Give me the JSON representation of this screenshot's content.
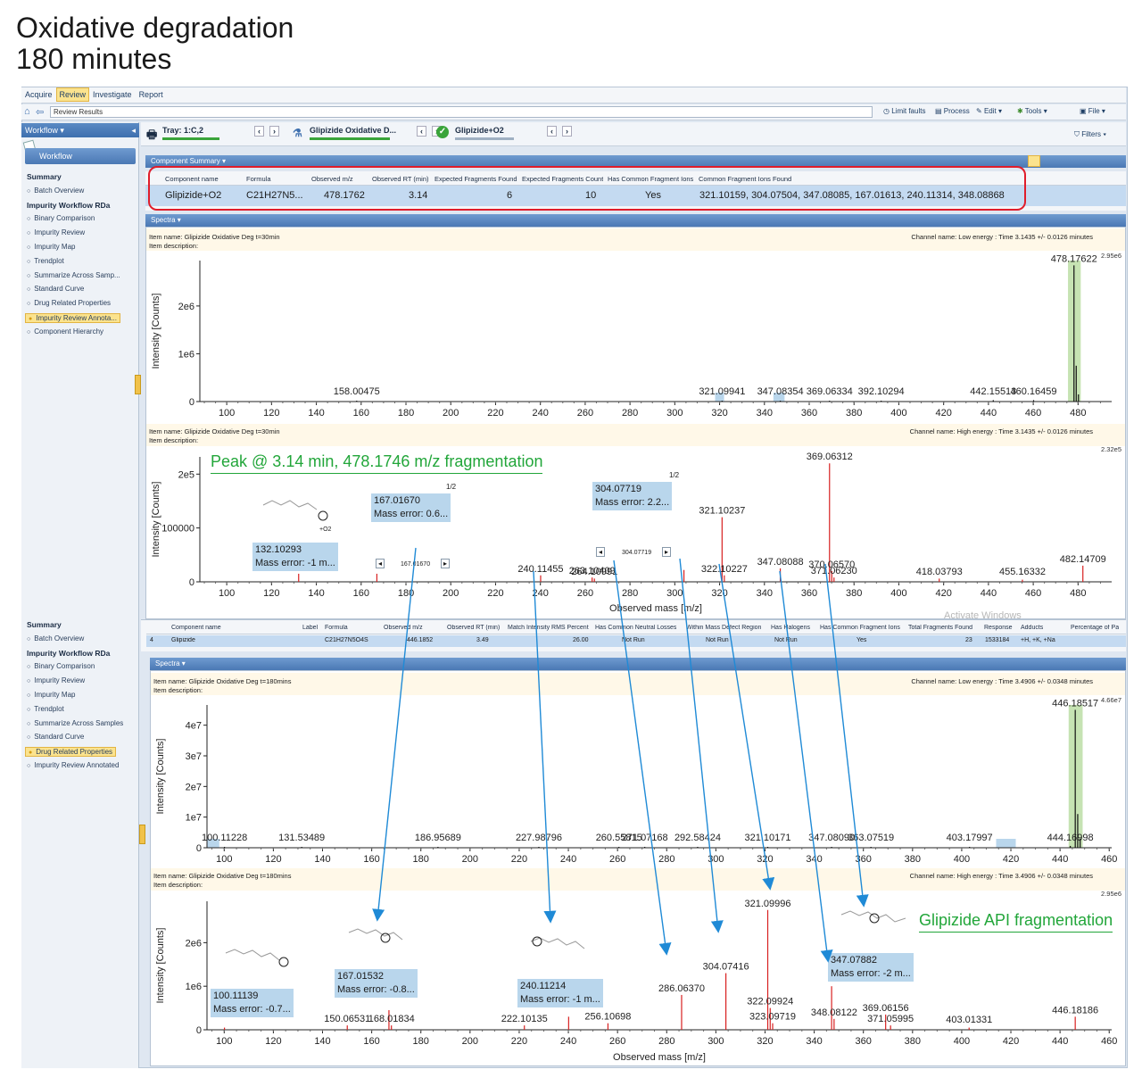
{
  "page": {
    "title_line1": "Oxidative degradation",
    "title_line2": "180 minutes"
  },
  "menu": {
    "tabs": [
      {
        "label": "Acquire",
        "active": false
      },
      {
        "label": "Review",
        "active": true
      },
      {
        "label": "Investigate",
        "active": false
      },
      {
        "label": "Report",
        "active": false
      }
    ]
  },
  "toolbar": {
    "address": "Review Results",
    "limit_faults": "Limit faults",
    "process": "Process",
    "edit": "Edit",
    "tools": "Tools",
    "file": "File",
    "filters": "Filters"
  },
  "sidebar": {
    "header": "Workflow",
    "tab": "Workflow",
    "items_top": [
      {
        "label": "Summary",
        "kind": "head"
      },
      {
        "label": "Batch Overview",
        "kind": "sub"
      },
      {
        "label": "Impurity Workflow RDa",
        "kind": "head"
      },
      {
        "label": "Binary Comparison",
        "kind": "sub"
      },
      {
        "label": "Impurity Review",
        "kind": "sub"
      },
      {
        "label": "Impurity Map",
        "kind": "sub"
      },
      {
        "label": "Trendplot",
        "kind": "sub"
      },
      {
        "label": "Summarize Across Samp...",
        "kind": "sub"
      },
      {
        "label": "Standard Curve",
        "kind": "sub"
      },
      {
        "label": "Drug Related Properties",
        "kind": "sub"
      },
      {
        "label": "Impurity Review Annota...",
        "kind": "sel"
      },
      {
        "label": "Component Hierarchy",
        "kind": "sub"
      }
    ],
    "items_bottom": [
      {
        "label": "Summary",
        "kind": "head"
      },
      {
        "label": "Batch Overview",
        "kind": "sub"
      },
      {
        "label": "Impurity Workflow RDa",
        "kind": "head"
      },
      {
        "label": "Binary Comparison",
        "kind": "sub"
      },
      {
        "label": "Impurity Review",
        "kind": "sub"
      },
      {
        "label": "Impurity Map",
        "kind": "sub"
      },
      {
        "label": "Trendplot",
        "kind": "sub"
      },
      {
        "label": "Summarize Across Samples",
        "kind": "sub"
      },
      {
        "label": "Standard Curve",
        "kind": "sub"
      },
      {
        "label": "Drug Related Properties",
        "kind": "sel"
      },
      {
        "label": "Impurity Review Annotated",
        "kind": "sub"
      }
    ]
  },
  "traybar": {
    "tray": "Tray: 1:C,2",
    "sample": "Glipizide Oxidative D...",
    "component": "Glipizide+O2"
  },
  "component_summary": {
    "title": "Component Summary",
    "headers": [
      "Component name",
      "Formula",
      "Observed m/z",
      "Observed RT (min)",
      "Expected Fragments Found",
      "Expected Fragments Count",
      "Has Common Fragment Ions",
      "Common Fragment Ions Found"
    ],
    "row": [
      "Glipizide+O2",
      "C21H27N5...",
      "478.1762",
      "3.14",
      "6",
      "10",
      "Yes",
      "321.10159, 304.07504, 347.08085, 167.01613, 240.11314, 348.08868"
    ]
  },
  "second_grid": {
    "headers": [
      "Component name",
      "Label",
      "Formula",
      "Observed m/z",
      "Observed RT (min)",
      "Match Intensity RMS Percent",
      "Has Common Neutral Losses",
      "Within Mass Defect Region",
      "Has Halogens",
      "Has Common Fragment Ions",
      "Total Fragments Found",
      "Response",
      "Adducts",
      "Percentage of Pa"
    ],
    "row": [
      "4",
      "Glipizide",
      "",
      "C21H27N5O4S",
      "446.1852",
      "3.49",
      "26.00",
      "Not Run",
      "Not Run",
      "Not Run",
      "Yes",
      "23",
      "1533184",
      "+H, +K, +Na"
    ]
  },
  "spectra_panel_title": "Spectra",
  "watermark": "Activate Windows",
  "spectra": {
    "s30_low": {
      "item_name": "Item name: Glipizide Oxidative Deg t=30min",
      "item_desc": "Item description:",
      "channel": "Channel name: Low energy : Time 3.1435 +/- 0.0126 minutes",
      "max_label": "2.95e6",
      "ylabel": "Intensity [Counts]"
    },
    "s30_high": {
      "item_name": "Item name: Glipizide Oxidative Deg t=30min",
      "item_desc": "Item description:",
      "channel": "Channel name: High energy : Time 3.1435 +/- 0.0126 minutes",
      "max_label": "2.32e5",
      "ylabel": "Intensity [Counts]",
      "xlabel": "Observed mass [m/z]",
      "annotation_title": "Peak @ 3.14 min, 478.1746 m/z fragmentation",
      "boxes": [
        {
          "mz": "132.10293",
          "err": "Mass error: -1 m..."
        },
        {
          "mz": "167.01670",
          "err": "Mass error: 0.6..."
        },
        {
          "mz": "304.07719",
          "err": "Mass error: 2.2..."
        }
      ],
      "page_marks": [
        "1/2",
        "1/2"
      ],
      "nav_labels": [
        "167.01670",
        "304.07719"
      ],
      "struct_label": "+O2"
    },
    "s180_low": {
      "item_name": "Item name: Glipizide Oxidative Deg t=180mins",
      "item_desc": "Item description:",
      "channel": "Channel name: Low energy : Time 3.4906 +/- 0.0348 minutes",
      "max_label": "4.66e7",
      "ylabel": "Intensity [Counts]"
    },
    "s180_high": {
      "item_name": "Item name: Glipizide Oxidative Deg t=180mins",
      "item_desc": "Item description:",
      "channel": "Channel name: High energy : Time 3.4906 +/- 0.0348 minutes",
      "max_label": "2.95e6",
      "ylabel": "Intensity [Counts]",
      "xlabel": "Observed mass [m/z]",
      "annotation_title": "Glipizide API fragmentation",
      "boxes": [
        {
          "mz": "100.11139",
          "err": "Mass error: -0.7..."
        },
        {
          "mz": "167.01532",
          "err": "Mass error: -0.8..."
        },
        {
          "mz": "240.11214",
          "err": "Mass error: -1 m..."
        },
        {
          "mz": "347.07882",
          "err": "Mass error: -2 m..."
        }
      ]
    }
  },
  "chart_data": [
    {
      "id": "s30_low",
      "type": "bar",
      "xlim": [
        88,
        495
      ],
      "ylim": [
        0,
        2950000.0
      ],
      "yticks": [
        {
          "v": 0,
          "t": "0"
        },
        {
          "v": 1000000.0,
          "t": "1e6"
        },
        {
          "v": 2000000.0,
          "t": "2e6"
        }
      ],
      "xticks": [
        100,
        120,
        140,
        160,
        180,
        200,
        220,
        240,
        260,
        280,
        300,
        320,
        340,
        360,
        380,
        400,
        420,
        440,
        460,
        480
      ],
      "peaks": [
        {
          "x": 158.00475,
          "y": 10000.0,
          "label": "158.00475"
        },
        {
          "x": 321.09941,
          "y": 10000.0,
          "label": "321.09941"
        },
        {
          "x": 347.08354,
          "y": 10000.0,
          "label": "347.08354"
        },
        {
          "x": 369.06334,
          "y": 10000.0,
          "label": "369.06334"
        },
        {
          "x": 392.10294,
          "y": 10000.0,
          "label": "392.10294"
        },
        {
          "x": 442.15513,
          "y": 30000.0,
          "label": "442.15513"
        },
        {
          "x": 460.16459,
          "y": 30000.0,
          "label": "460.16459"
        },
        {
          "x": 478.17622,
          "y": 2850000.0,
          "label": "478.17622"
        },
        {
          "x": 479.18,
          "y": 750000.0,
          "label": ""
        },
        {
          "x": 480.17,
          "y": 150000.0,
          "label": ""
        }
      ]
    },
    {
      "id": "s30_high",
      "type": "bar",
      "xlim": [
        88,
        495
      ],
      "ylim": [
        0,
        232000.0
      ],
      "yticks": [
        {
          "v": 0,
          "t": "0"
        },
        {
          "v": 100000,
          "t": "100000"
        },
        {
          "v": 200000,
          "t": "2e5"
        }
      ],
      "xticks": [
        100,
        120,
        140,
        160,
        180,
        200,
        220,
        240,
        260,
        280,
        300,
        320,
        340,
        360,
        380,
        400,
        420,
        440,
        460,
        480
      ],
      "peaks": [
        {
          "x": 132.10293,
          "y": 15000,
          "label": ""
        },
        {
          "x": 167.0167,
          "y": 15000,
          "label": ""
        },
        {
          "x": 240.11455,
          "y": 12000,
          "label": "240.11455"
        },
        {
          "x": 263.10409,
          "y": 8000,
          "label": "263.10409"
        },
        {
          "x": 264.10991,
          "y": 6000,
          "label": "264.10991"
        },
        {
          "x": 304.07719,
          "y": 22000,
          "label": ""
        },
        {
          "x": 321.10237,
          "y": 120000,
          "label": "321.10237"
        },
        {
          "x": 322.10227,
          "y": 12000,
          "label": "322.10227"
        },
        {
          "x": 347.08088,
          "y": 25000,
          "label": "347.08088"
        },
        {
          "x": 369.06312,
          "y": 220000,
          "label": "369.06312"
        },
        {
          "x": 370.0657,
          "y": 20000,
          "label": "370.06570"
        },
        {
          "x": 371.0623,
          "y": 8000,
          "label": "371.06230"
        },
        {
          "x": 418.03793,
          "y": 6000,
          "label": "418.03793"
        },
        {
          "x": 455.16332,
          "y": 4000,
          "label": "455.16332"
        },
        {
          "x": 482.14709,
          "y": 30000,
          "label": "482.14709"
        }
      ]
    },
    {
      "id": "s180_low",
      "type": "bar",
      "xlim": [
        93,
        461
      ],
      "ylim": [
        0,
        46600000.0
      ],
      "yticks": [
        {
          "v": 0,
          "t": "0"
        },
        {
          "v": 10000000.0,
          "t": "1e7"
        },
        {
          "v": 20000000.0,
          "t": "2e7"
        },
        {
          "v": 30000000.0,
          "t": "3e7"
        },
        {
          "v": 40000000.0,
          "t": "4e7"
        }
      ],
      "xticks": [
        100,
        120,
        140,
        160,
        180,
        200,
        220,
        240,
        260,
        280,
        300,
        320,
        340,
        360,
        380,
        400,
        420,
        440,
        460
      ],
      "peaks": [
        {
          "x": 100.11228,
          "y": 200000.0,
          "label": "100.11228"
        },
        {
          "x": 131.53489,
          "y": 200000.0,
          "label": "131.53489"
        },
        {
          "x": 186.95689,
          "y": 200000.0,
          "label": "186.95689"
        },
        {
          "x": 227.98796,
          "y": 200000.0,
          "label": "227.98796"
        },
        {
          "x": 260.55815,
          "y": 200000.0,
          "label": "260.55815"
        },
        {
          "x": 271.07168,
          "y": 200000.0,
          "label": "271.07168"
        },
        {
          "x": 292.58424,
          "y": 200000.0,
          "label": "292.58424"
        },
        {
          "x": 321.10171,
          "y": 200000.0,
          "label": "321.10171"
        },
        {
          "x": 347.0809,
          "y": 200000.0,
          "label": "347.08090"
        },
        {
          "x": 363.07519,
          "y": 200000.0,
          "label": "363.07519"
        },
        {
          "x": 403.17997,
          "y": 200000.0,
          "label": "403.17997"
        },
        {
          "x": 444.16998,
          "y": 600000.0,
          "label": "444.16998"
        },
        {
          "x": 446.18517,
          "y": 45000000.0,
          "label": "446.18517"
        },
        {
          "x": 447.19,
          "y": 11000000.0,
          "label": ""
        },
        {
          "x": 448.18,
          "y": 3000000.0,
          "label": ""
        }
      ]
    },
    {
      "id": "s180_high",
      "type": "bar",
      "xlim": [
        93,
        461
      ],
      "ylim": [
        0,
        2950000.0
      ],
      "yticks": [
        {
          "v": 0,
          "t": "0"
        },
        {
          "v": 1000000.0,
          "t": "1e6"
        },
        {
          "v": 2000000.0,
          "t": "2e6"
        }
      ],
      "xticks": [
        100,
        120,
        140,
        160,
        180,
        200,
        220,
        240,
        260,
        280,
        300,
        320,
        340,
        360,
        380,
        400,
        420,
        440,
        460
      ],
      "peaks": [
        {
          "x": 100.11139,
          "y": 50000.0,
          "label": ""
        },
        {
          "x": 150.06531,
          "y": 100000.0,
          "label": "150.06531"
        },
        {
          "x": 167.01532,
          "y": 450000.0,
          "label": ""
        },
        {
          "x": 168.01834,
          "y": 100000.0,
          "label": "168.01834"
        },
        {
          "x": 222.10135,
          "y": 100000.0,
          "label": "222.10135"
        },
        {
          "x": 240.11214,
          "y": 300000.0,
          "label": ""
        },
        {
          "x": 256.10698,
          "y": 150000.0,
          "label": "256.10698"
        },
        {
          "x": 286.0637,
          "y": 800000.0,
          "label": "286.06370"
        },
        {
          "x": 304.07416,
          "y": 1300000.0,
          "label": "304.07416"
        },
        {
          "x": 321.09996,
          "y": 2750000.0,
          "label": "321.09996"
        },
        {
          "x": 322.09924,
          "y": 500000.0,
          "label": "322.09924"
        },
        {
          "x": 323.09719,
          "y": 150000.0,
          "label": "323.09719"
        },
        {
          "x": 347.07882,
          "y": 1000000.0,
          "label": ""
        },
        {
          "x": 348.08122,
          "y": 250000.0,
          "label": "348.08122"
        },
        {
          "x": 369.06156,
          "y": 350000.0,
          "label": "369.06156"
        },
        {
          "x": 371.05995,
          "y": 100000.0,
          "label": "371.05995"
        },
        {
          "x": 403.01331,
          "y": 50000.0,
          "label": "403.01331"
        },
        {
          "x": 446.18186,
          "y": 300000.0,
          "label": "446.18186"
        }
      ]
    }
  ],
  "colors": {
    "peak": "#d82020",
    "peak_low": "#111111",
    "highlight_green": "#b8dca0",
    "arrow": "#1f8ad6",
    "annotation_green": "#22a63a",
    "box_bg": "#b9d6ec",
    "red_outline": "#e01d2b"
  }
}
